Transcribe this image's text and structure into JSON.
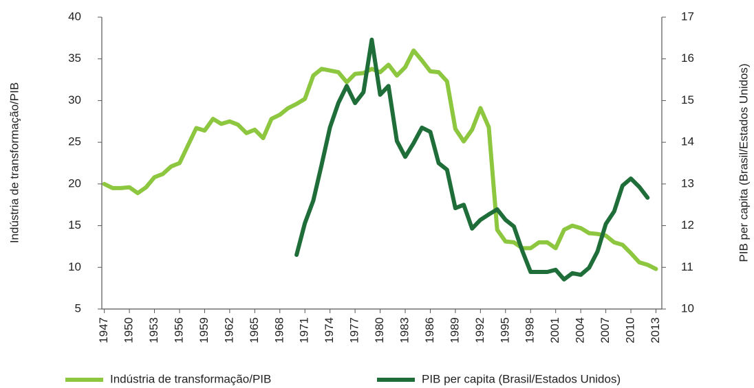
{
  "chart_data": {
    "type": "line",
    "ylabel": "Indústria de transformação/PIB",
    "y2label": "PIB per capita (Brasil/Estados Unidos)",
    "x": [
      1947,
      1948,
      1949,
      1950,
      1951,
      1952,
      1953,
      1954,
      1955,
      1956,
      1957,
      1958,
      1959,
      1960,
      1961,
      1962,
      1963,
      1964,
      1965,
      1966,
      1967,
      1968,
      1969,
      1970,
      1971,
      1972,
      1973,
      1974,
      1975,
      1976,
      1977,
      1978,
      1979,
      1980,
      1981,
      1982,
      1983,
      1984,
      1985,
      1986,
      1987,
      1988,
      1989,
      1990,
      1991,
      1992,
      1993,
      1994,
      1995,
      1996,
      1997,
      1998,
      1999,
      2000,
      2001,
      2002,
      2003,
      2004,
      2005,
      2006,
      2007,
      2008,
      2009,
      2010,
      2011,
      2012,
      2013
    ],
    "xlim": [
      1946.7,
      2013.7
    ],
    "xticks": [
      1947,
      1950,
      1953,
      1956,
      1959,
      1962,
      1965,
      1968,
      1971,
      1974,
      1977,
      1980,
      1983,
      1986,
      1989,
      1992,
      1995,
      1998,
      2001,
      2004,
      2007,
      2010,
      2013
    ],
    "ylim": [
      5,
      40
    ],
    "yticks": [
      5,
      10,
      15,
      20,
      25,
      30,
      35,
      40
    ],
    "y2lim": [
      10,
      17
    ],
    "y2ticks": [
      10,
      11,
      12,
      13,
      14,
      15,
      16,
      17
    ],
    "legend": "bottom",
    "series": [
      {
        "name": "Indústria de transformação/PIB",
        "color": "#8dc63f",
        "values": [
          20,
          19.5,
          19.5,
          19.6,
          18.9,
          19.6,
          20.8,
          21.2,
          22.1,
          22.5,
          24.6,
          26.7,
          26.4,
          27.8,
          27.2,
          27.5,
          27.1,
          26.1,
          26.5,
          25.5,
          27.8,
          28.3,
          29.1,
          29.6,
          30.2,
          33,
          33.8,
          33.6,
          33.4,
          32.2,
          33.2,
          33.3,
          33.8,
          33.4,
          34.3,
          33,
          34,
          36,
          34.8,
          33.5,
          33.4,
          32.3,
          26.6,
          25.1,
          26.5,
          29.1,
          26.8,
          14.5,
          13.1,
          13,
          12.3,
          12.3,
          13,
          13,
          12.3,
          14.5,
          15,
          14.7,
          14.1,
          14,
          13.8,
          13,
          12.7,
          11.7,
          10.6,
          10.3,
          9.8
        ]
      },
      {
        "name": "PIB per capita (Brasil/Estados Unidos)",
        "color": "#1f6e3a",
        "axis": "y2",
        "values": [
          null,
          null,
          null,
          null,
          null,
          null,
          null,
          null,
          null,
          null,
          null,
          null,
          null,
          null,
          null,
          null,
          null,
          null,
          null,
          null,
          null,
          null,
          null,
          11.3,
          12.06,
          12.6,
          13.46,
          14.36,
          14.94,
          15.35,
          14.94,
          15.2,
          16.46,
          15.14,
          15.35,
          14.03,
          13.65,
          13.98,
          14.35,
          14.25,
          13.5,
          13.34,
          12.42,
          12.5,
          11.93,
          12.14,
          12.27,
          12.39,
          12.14,
          11.98,
          11.4,
          10.89,
          10.89,
          10.89,
          10.94,
          10.71,
          10.86,
          10.82,
          10.99,
          11.38,
          12.04,
          12.34,
          12.96,
          13.13,
          12.93,
          12.67,
          null
        ]
      }
    ]
  }
}
